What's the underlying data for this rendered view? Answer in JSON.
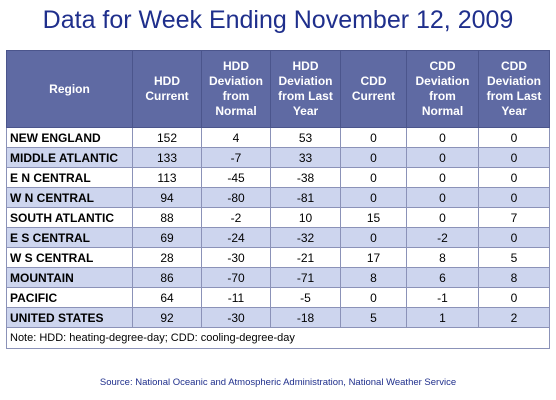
{
  "title": "Data for Week Ending November 12, 2009",
  "columns": [
    "Region",
    "HDD\nCurrent",
    "HDD\nDeviation\nfrom\nNormal",
    "HDD\nDeviation\nfrom Last\nYear",
    "CDD\nCurrent",
    "CDD\nDeviation\nfrom\nNormal",
    "CDD\nDeviation\nfrom Last\nYear"
  ],
  "rows": [
    [
      "NEW ENGLAND",
      "152",
      "4",
      "53",
      "0",
      "0",
      "0"
    ],
    [
      "MIDDLE ATLANTIC",
      "133",
      "-7",
      "33",
      "0",
      "0",
      "0"
    ],
    [
      "E N CENTRAL",
      "113",
      "-45",
      "-38",
      "0",
      "0",
      "0"
    ],
    [
      "W N CENTRAL",
      "94",
      "-80",
      "-81",
      "0",
      "0",
      "0"
    ],
    [
      "SOUTH ATLANTIC",
      "88",
      "-2",
      "10",
      "15",
      "0",
      "7"
    ],
    [
      "E S CENTRAL",
      "69",
      "-24",
      "-32",
      "0",
      "-2",
      "0"
    ],
    [
      "W S CENTRAL",
      "28",
      "-30",
      "-21",
      "17",
      "8",
      "5"
    ],
    [
      "MOUNTAIN",
      "86",
      "-70",
      "-71",
      "8",
      "6",
      "8"
    ],
    [
      "PACIFIC",
      "64",
      "-11",
      "-5",
      "0",
      "-1",
      "0"
    ],
    [
      "UNITED STATES",
      "92",
      "-30",
      "-18",
      "5",
      "1",
      "2"
    ]
  ],
  "note": "Note: HDD: heating-degree-day; CDD: cooling-degree-day",
  "source": "Source:  National Oceanic and Atmospheric Administration, National Weather Service",
  "colors": {
    "title": "#1f2f8c",
    "header_bg": "#5f6aa3",
    "stripe": "#cdd5ee"
  }
}
